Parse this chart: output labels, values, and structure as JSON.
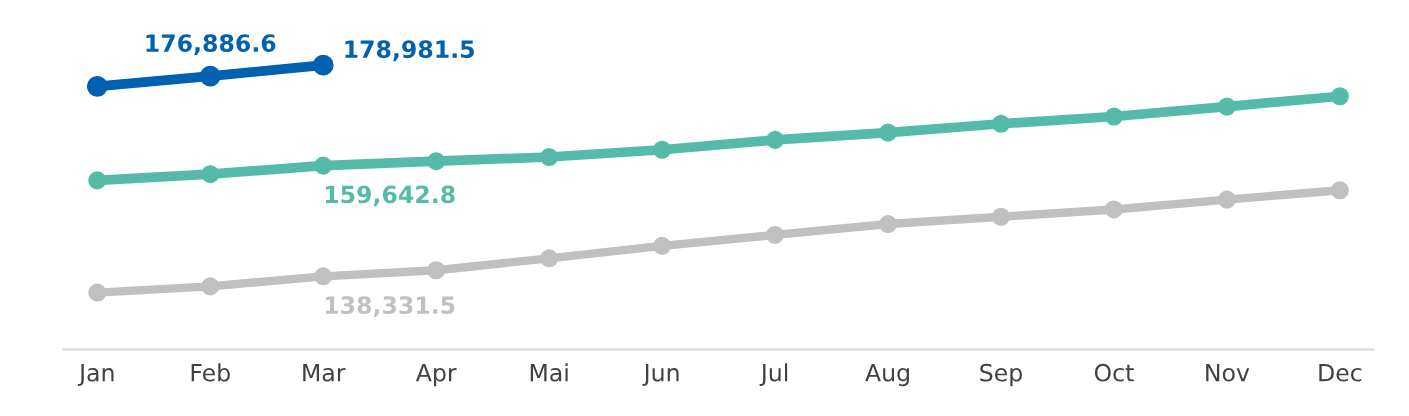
{
  "chart_data": {
    "type": "line",
    "categories": [
      "Jan",
      "Feb",
      "Mar",
      "Apr",
      "Mai",
      "Jun",
      "Jul",
      "Aug",
      "Sep",
      "Oct",
      "Nov",
      "Dec"
    ],
    "series": [
      {
        "color": "#0061b0",
        "values": [
          174900,
          176886.6,
          178981.5,
          null,
          null,
          null,
          null,
          null,
          null,
          null,
          null,
          null
        ],
        "value_labels": [
          null,
          "176,886.6",
          "178,981.5",
          null,
          null,
          null,
          null,
          null,
          null,
          null,
          null,
          null
        ]
      },
      {
        "color": "#55bba8",
        "values": [
          156800,
          158000,
          159642.8,
          160500,
          161300,
          162700,
          164600,
          166000,
          167700,
          169100,
          171000,
          173000
        ],
        "value_labels": [
          null,
          null,
          "159,642.8",
          null,
          null,
          null,
          null,
          null,
          null,
          null,
          null,
          null
        ]
      },
      {
        "color": "#c0c0c0",
        "values": [
          135200,
          136400,
          138331.5,
          139500,
          141800,
          144200,
          146300,
          148400,
          149800,
          151200,
          153100,
          154900
        ],
        "value_labels": [
          null,
          null,
          "138,331.5",
          null,
          null,
          null,
          null,
          null,
          null,
          null,
          null,
          null
        ]
      }
    ],
    "tick_labels": "x",
    "marker": "circle",
    "line_style": "solid",
    "grid": false,
    "legend": false
  }
}
